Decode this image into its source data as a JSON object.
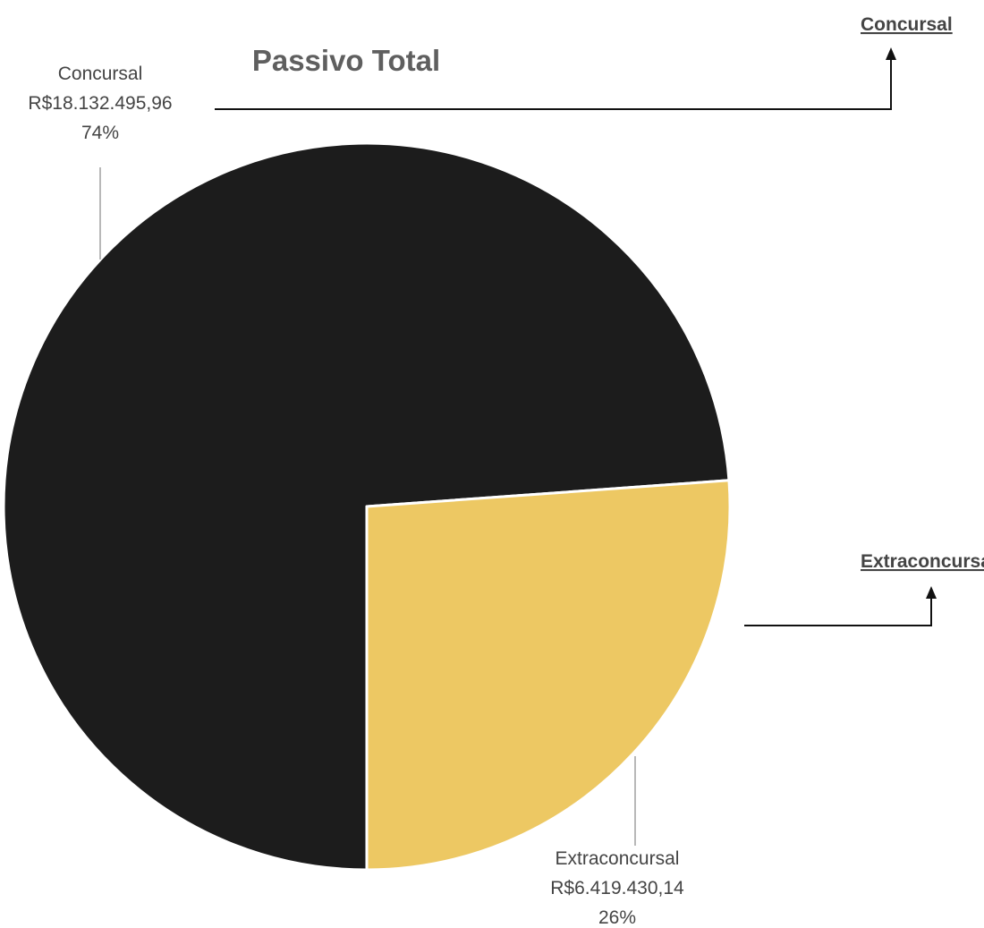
{
  "chart_data": {
    "type": "pie",
    "title": "Passivo Total",
    "slices": [
      {
        "name": "Concursal",
        "amount_label": "R$18.132.495,96",
        "percent_label": "74%",
        "value": 18132495.96,
        "color": "#1c1c1c"
      },
      {
        "name": "Extraconcursal",
        "amount_label": "R$6.419.430,14",
        "percent_label": "26%",
        "value": 6419430.14,
        "color": "#edc863"
      }
    ],
    "legend": {
      "placement": "right",
      "items": [
        "Concursal",
        "Extraconcursal"
      ]
    }
  }
}
